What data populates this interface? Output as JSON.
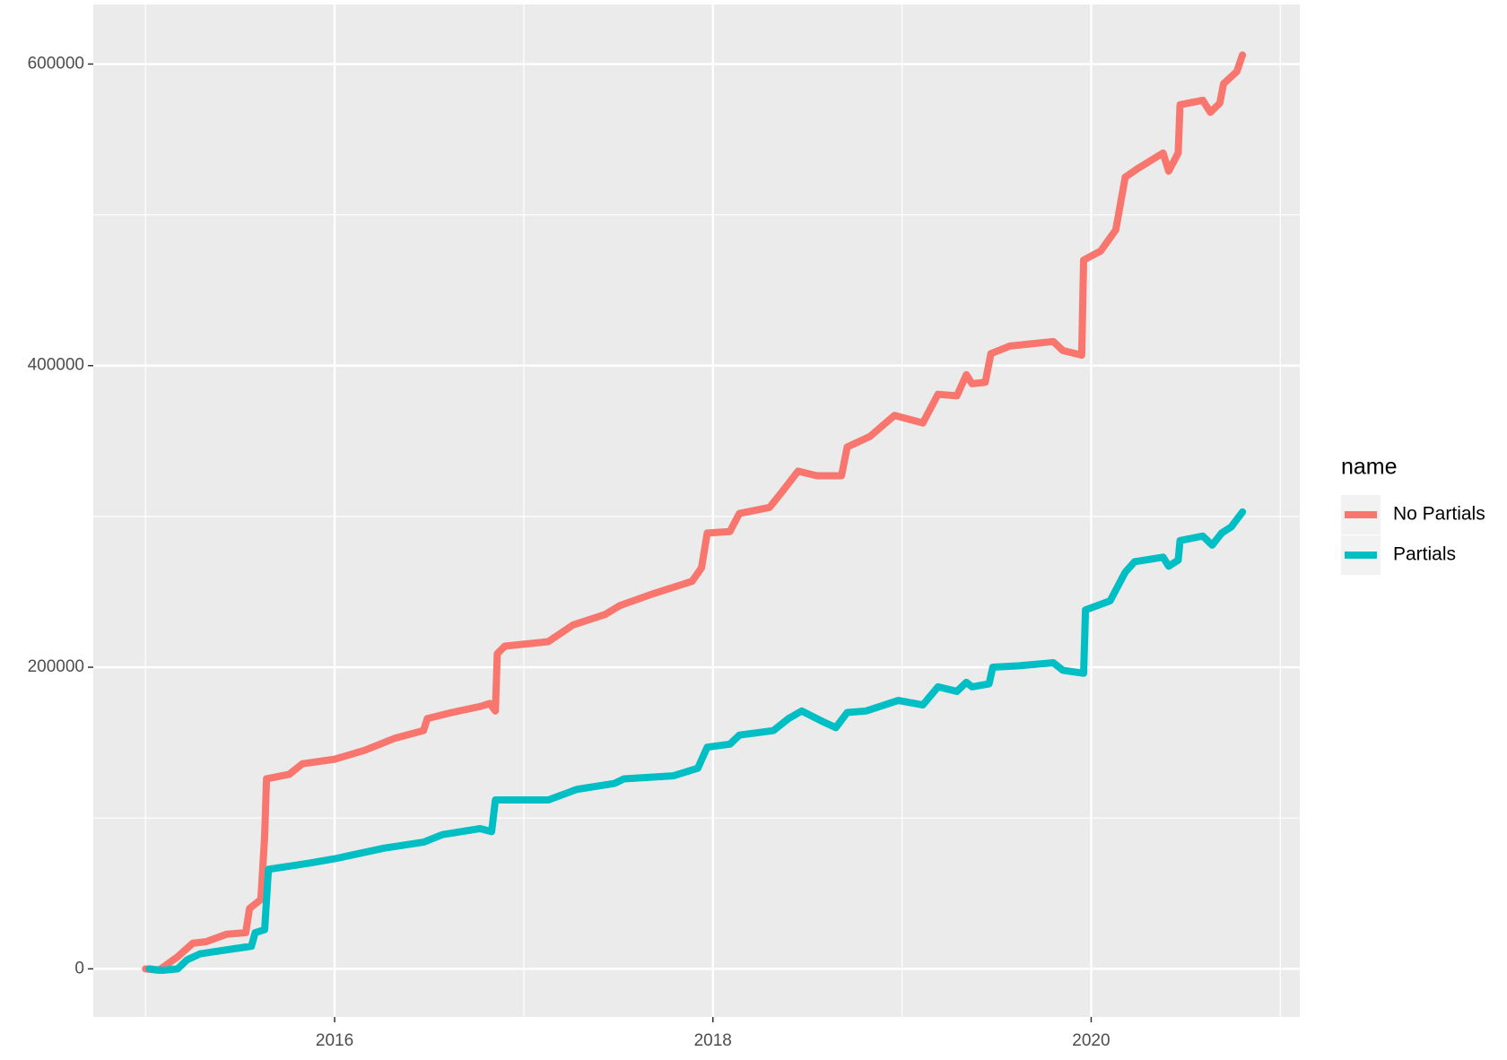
{
  "chart_data": {
    "type": "line",
    "legend_title": "name",
    "xlim": [
      2014.724,
      2021.103
    ],
    "xticks": [
      2016,
      2018,
      2020
    ],
    "xminor": [
      2015,
      2017,
      2019,
      2021
    ],
    "ylim": [
      -31900,
      639500
    ],
    "yticks": [
      0,
      200000,
      400000,
      600000
    ],
    "yminor": [
      100000,
      300000,
      500000
    ],
    "grid": true,
    "legend": "right",
    "series": [
      {
        "name": "No Partials",
        "color": "#F8766D",
        "x": [
          2015.0,
          2015.07,
          2015.17,
          2015.25,
          2015.32,
          2015.43,
          2015.53,
          2015.55,
          2015.61,
          2015.63,
          2015.64,
          2015.76,
          2015.83,
          2016.0,
          2016.16,
          2016.32,
          2016.47,
          2016.49,
          2016.62,
          2016.77,
          2016.82,
          2016.85,
          2016.86,
          2016.9,
          2017.13,
          2017.26,
          2017.43,
          2017.51,
          2017.69,
          2017.89,
          2017.94,
          2017.97,
          2018.09,
          2018.14,
          2018.3,
          2018.37,
          2018.45,
          2018.55,
          2018.68,
          2018.71,
          2018.83,
          2018.96,
          2019.11,
          2019.19,
          2019.29,
          2019.34,
          2019.37,
          2019.44,
          2019.47,
          2019.57,
          2019.8,
          2019.85,
          2019.95,
          2019.96,
          2020.05,
          2020.13,
          2020.18,
          2020.25,
          2020.38,
          2020.41,
          2020.46,
          2020.47,
          2020.59,
          2020.63,
          2020.68,
          2020.7,
          2020.77,
          2020.8
        ],
        "values": [
          0,
          -1000,
          8000,
          17000,
          18000,
          23000,
          24000,
          40000,
          46000,
          88000,
          126000,
          129000,
          136000,
          139000,
          145000,
          153000,
          158000,
          166000,
          170000,
          174000,
          176000,
          171000,
          209000,
          214000,
          217000,
          228000,
          235000,
          241000,
          249000,
          257000,
          266000,
          289000,
          290000,
          302000,
          306000,
          317000,
          330000,
          327000,
          327000,
          346000,
          353000,
          367000,
          362000,
          381000,
          380000,
          394000,
          388000,
          389000,
          408000,
          413000,
          416000,
          410000,
          407000,
          470000,
          476000,
          490000,
          525000,
          531000,
          541000,
          529000,
          541000,
          573000,
          576000,
          568000,
          574000,
          587000,
          595000,
          606000
        ]
      },
      {
        "name": "Partials",
        "color": "#00BFC4",
        "x": [
          2015.02,
          2015.09,
          2015.17,
          2015.22,
          2015.29,
          2015.45,
          2015.56,
          2015.58,
          2015.63,
          2015.65,
          2015.86,
          2016.0,
          2016.26,
          2016.47,
          2016.57,
          2016.77,
          2016.83,
          2016.85,
          2017.13,
          2017.28,
          2017.48,
          2017.53,
          2017.79,
          2017.92,
          2017.97,
          2018.09,
          2018.14,
          2018.32,
          2018.4,
          2018.47,
          2018.58,
          2018.65,
          2018.71,
          2018.81,
          2018.98,
          2019.11,
          2019.19,
          2019.29,
          2019.34,
          2019.37,
          2019.46,
          2019.48,
          2019.62,
          2019.8,
          2019.85,
          2019.96,
          2019.97,
          2020.1,
          2020.18,
          2020.23,
          2020.38,
          2020.41,
          2020.46,
          2020.47,
          2020.59,
          2020.64,
          2020.69,
          2020.74,
          2020.8
        ],
        "values": [
          0,
          -1000,
          0,
          6000,
          10000,
          13000,
          15000,
          24000,
          26000,
          66000,
          70000,
          73000,
          80000,
          84000,
          89000,
          93000,
          91000,
          112000,
          112000,
          119000,
          123000,
          126000,
          128000,
          133000,
          147000,
          149000,
          155000,
          158000,
          166000,
          171000,
          164000,
          160000,
          170000,
          171000,
          178000,
          175000,
          187000,
          184000,
          190000,
          187000,
          189000,
          200000,
          201000,
          203000,
          198000,
          196000,
          238000,
          244000,
          263000,
          270000,
          273000,
          267000,
          271000,
          284000,
          287000,
          281000,
          289000,
          293000,
          303000
        ]
      }
    ]
  }
}
